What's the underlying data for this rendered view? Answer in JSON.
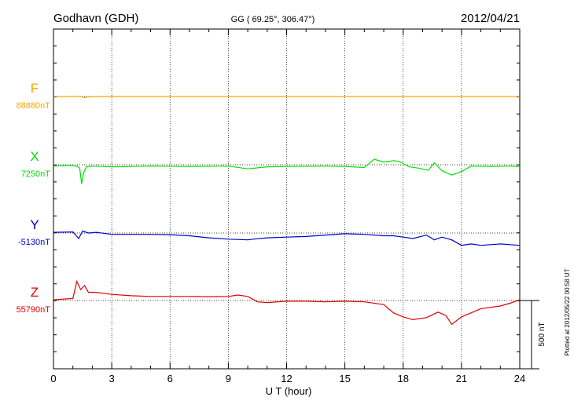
{
  "header": {
    "station": "Godhavn (GDH)",
    "coords": "GG ( 69.25°, 306.47°)",
    "date": "2012/04/21"
  },
  "footer_note": "Plotted at 2012/05/22 00:58 UT",
  "scale_label": "500 nT",
  "colors": {
    "F": "#f5a800",
    "X": "#00e000",
    "Y": "#0000cc",
    "Z": "#dd0000"
  },
  "chart_data": {
    "type": "line",
    "xlabel": "U T (hour)",
    "xlim": [
      0,
      24
    ],
    "xticks": [
      "0",
      "3",
      "6",
      "9",
      "12",
      "15",
      "18",
      "21",
      "24"
    ],
    "grid": "dotted vertical every 3 h",
    "scale_bar_nT": 500,
    "series": [
      {
        "name": "F",
        "baseline": "88880nT",
        "points": [
          [
            0,
            0
          ],
          [
            1.0,
            0
          ],
          [
            1.4,
            2
          ],
          [
            1.55,
            -8
          ],
          [
            1.7,
            -5
          ],
          [
            2.0,
            0
          ],
          [
            24,
            0
          ]
        ]
      },
      {
        "name": "X",
        "baseline": "7250nT",
        "points": [
          [
            0,
            -10
          ],
          [
            0.8,
            -5
          ],
          [
            1.2,
            -10
          ],
          [
            1.35,
            -25
          ],
          [
            1.45,
            -140
          ],
          [
            1.55,
            -60
          ],
          [
            1.7,
            -15
          ],
          [
            2.0,
            -10
          ],
          [
            3,
            -15
          ],
          [
            5,
            -10
          ],
          [
            7,
            -12
          ],
          [
            9,
            -10
          ],
          [
            10,
            -30
          ],
          [
            11,
            -15
          ],
          [
            12,
            -12
          ],
          [
            14,
            -10
          ],
          [
            15,
            -12
          ],
          [
            16,
            -20
          ],
          [
            16.5,
            40
          ],
          [
            17,
            20
          ],
          [
            17.5,
            30
          ],
          [
            17.8,
            25
          ],
          [
            18.3,
            -15
          ],
          [
            18.8,
            -25
          ],
          [
            19.3,
            -40
          ],
          [
            19.6,
            15
          ],
          [
            20,
            -45
          ],
          [
            20.5,
            -75
          ],
          [
            21,
            -50
          ],
          [
            21.5,
            -10
          ],
          [
            22.5,
            -12
          ],
          [
            23.5,
            -10
          ],
          [
            24,
            -15
          ]
        ]
      },
      {
        "name": "Y",
        "baseline": "-5130nT",
        "points": [
          [
            0,
            5
          ],
          [
            1,
            8
          ],
          [
            1.3,
            -40
          ],
          [
            1.5,
            15
          ],
          [
            1.8,
            0
          ],
          [
            2.2,
            5
          ],
          [
            3,
            -10
          ],
          [
            5,
            -10
          ],
          [
            6,
            -12
          ],
          [
            7,
            -20
          ],
          [
            8,
            -35
          ],
          [
            9,
            -45
          ],
          [
            10,
            -50
          ],
          [
            10.3,
            -45
          ],
          [
            11,
            -35
          ],
          [
            12,
            -30
          ],
          [
            13,
            -25
          ],
          [
            14,
            -15
          ],
          [
            15,
            -5
          ],
          [
            16,
            -10
          ],
          [
            17,
            -20
          ],
          [
            17.5,
            -20
          ],
          [
            18,
            -30
          ],
          [
            18.5,
            -40
          ],
          [
            19.2,
            -15
          ],
          [
            19.6,
            -50
          ],
          [
            20,
            -30
          ],
          [
            20.5,
            -50
          ],
          [
            21,
            -90
          ],
          [
            21.5,
            -80
          ],
          [
            22,
            -90
          ],
          [
            22.5,
            -85
          ],
          [
            23,
            -80
          ],
          [
            23.5,
            -85
          ],
          [
            24,
            -90
          ]
        ]
      },
      {
        "name": "Z",
        "baseline": "55790nT",
        "points": [
          [
            0,
            5
          ],
          [
            1,
            15
          ],
          [
            1.2,
            140
          ],
          [
            1.4,
            80
          ],
          [
            1.6,
            110
          ],
          [
            1.8,
            60
          ],
          [
            2.2,
            60
          ],
          [
            3,
            45
          ],
          [
            4,
            35
          ],
          [
            5,
            30
          ],
          [
            6,
            30
          ],
          [
            7,
            30
          ],
          [
            8,
            28
          ],
          [
            9,
            30
          ],
          [
            9.5,
            40
          ],
          [
            10,
            30
          ],
          [
            10.5,
            -10
          ],
          [
            11,
            -15
          ],
          [
            12,
            -5
          ],
          [
            13,
            -5
          ],
          [
            14,
            -10
          ],
          [
            15,
            -5
          ],
          [
            16,
            -10
          ],
          [
            17,
            -30
          ],
          [
            17.5,
            -90
          ],
          [
            18,
            -120
          ],
          [
            18.5,
            -140
          ],
          [
            19.2,
            -125
          ],
          [
            19.8,
            -85
          ],
          [
            20.2,
            -110
          ],
          [
            20.5,
            -175
          ],
          [
            21,
            -120
          ],
          [
            22,
            -60
          ],
          [
            23,
            -40
          ],
          [
            23.5,
            -20
          ],
          [
            24,
            5
          ]
        ]
      }
    ]
  }
}
